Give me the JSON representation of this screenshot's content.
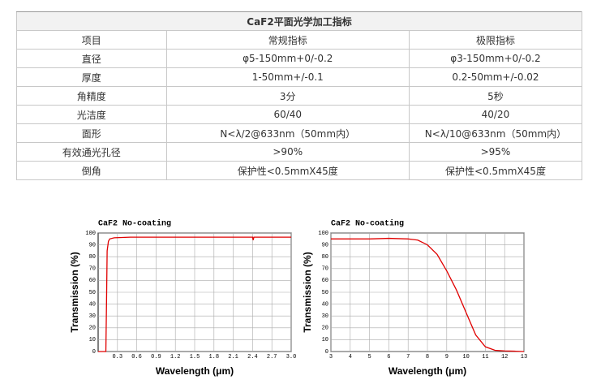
{
  "table": {
    "title": "CaF2平面光学加工指标",
    "header": [
      "项目",
      "常规指标",
      "极限指标"
    ],
    "rows": [
      [
        "直径",
        "φ5-150mm+0/-0.2",
        "φ3-150mm+0/-0.2"
      ],
      [
        "厚度",
        "1-50mm+/-0.1",
        "0.2-50mm+/-0.02"
      ],
      [
        "角精度",
        "3分",
        "5秒"
      ],
      [
        "光洁度",
        "60/40",
        "40/20"
      ],
      [
        "面形",
        "N<λ/2@633nm（50mm内）",
        "N<λ/10@633nm（50mm内）"
      ],
      [
        "有效通光孔径",
        ">90%",
        ">95%"
      ],
      [
        "倒角",
        "保护性<0.5mmX45度",
        "保护性<0.5mmX45度"
      ]
    ]
  },
  "chart_data": [
    {
      "type": "line",
      "title": "CaF2 No-coating",
      "x_label": "Wavelength (μm)",
      "y_label": "Transmission (%)",
      "xlim": [
        0,
        3
      ],
      "xticks": [
        0.3,
        0.6,
        0.9,
        1.2,
        1.5,
        1.8,
        2.1,
        2.4,
        2.7,
        {
          "value": 3,
          "label": "3.0"
        }
      ],
      "ylim": [
        0,
        100
      ],
      "yticks": [
        0,
        10,
        20,
        30,
        40,
        50,
        60,
        70,
        80,
        90,
        100
      ],
      "grid": true,
      "series": [
        {
          "color": "#e00000",
          "x": [
            0,
            0.12,
            0.13,
            0.14,
            0.16,
            0.18,
            0.25,
            0.5,
            1.0,
            1.5,
            2.0,
            2.4,
            2.41,
            2.42,
            2.5,
            3.0
          ],
          "values": [
            0,
            0,
            40,
            85,
            93,
            95,
            96,
            96.5,
            96.5,
            96.5,
            96.5,
            96.5,
            94,
            96.5,
            96.5,
            96.5
          ]
        }
      ]
    },
    {
      "type": "line",
      "title": "CaF2 No-coating",
      "x_label": "Wavelength (μm)",
      "y_label": "Transmission (%)",
      "xlim": [
        3,
        13
      ],
      "xticks": [
        3,
        4,
        5,
        6,
        7,
        8,
        9,
        10,
        11,
        12,
        13
      ],
      "ylim": [
        0,
        100
      ],
      "yticks": [
        0,
        10,
        20,
        30,
        40,
        50,
        60,
        70,
        80,
        90,
        100
      ],
      "grid": true,
      "series": [
        {
          "color": "#e00000",
          "x": [
            3,
            4,
            5,
            6,
            7,
            7.5,
            8,
            8.5,
            9,
            9.5,
            10,
            10.5,
            11,
            11.5,
            12,
            12.5,
            13
          ],
          "values": [
            95,
            95,
            95,
            95.5,
            95,
            94,
            90,
            82,
            68,
            52,
            33,
            14,
            4,
            1,
            0.5,
            0.3,
            0
          ]
        }
      ]
    }
  ]
}
